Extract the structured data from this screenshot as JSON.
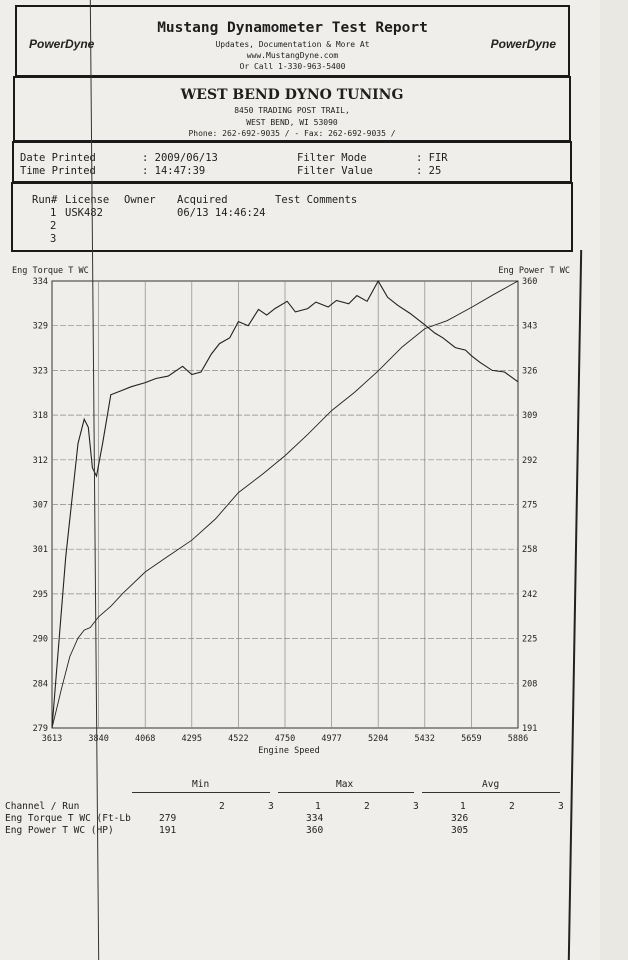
{
  "header": {
    "title": "Mustang Dynamometer Test Report",
    "line1": "Updates, Documentation & More At",
    "line2": "www.MustangDyne.com",
    "line3": "Or Call 1-330-963-5400",
    "logo_text": "PowerDyne"
  },
  "shop": {
    "name": "WEST BEND DYNO TUNING",
    "address1": "8450 TRADING POST TRAIL,",
    "address2": "WEST BEND, WI  53090",
    "phone": "Phone: 262-692-9035 /  - Fax: 262-692-9035 /"
  },
  "info": {
    "date_label": "Date Printed",
    "date_value": ": 2009/06/13",
    "time_label": "Time Printed",
    "time_value": ": 14:47:39",
    "filter_mode_label": "Filter Mode",
    "filter_mode_value": ": FIR",
    "filter_value_label": "Filter Value",
    "filter_value_value": ": 25"
  },
  "runs": {
    "headers": [
      "Run#",
      "License",
      "Owner",
      "Acquired",
      "Test Comments"
    ],
    "rows": [
      {
        "run": "1",
        "license": "USK482",
        "acquired": "06/13 14:46:24"
      },
      {
        "run": "2"
      },
      {
        "run": "3"
      }
    ]
  },
  "chart_data": {
    "type": "line",
    "left_axis_label": "Eng Torque T WC",
    "right_axis_label": "Eng Power T WC",
    "xlabel": "Engine Speed",
    "xlim": [
      3613,
      5886
    ],
    "ylim_left": [
      279,
      334
    ],
    "ylim_right": [
      191,
      360
    ],
    "x_ticks": [
      "3613",
      "3840",
      "4068",
      "4295",
      "4522",
      "4750",
      "4977",
      "5204",
      "5432",
      "5659",
      "5886"
    ],
    "left_ticks": [
      "334",
      "329",
      "323",
      "318",
      "312",
      "307",
      "301",
      "295",
      "290",
      "284",
      "279"
    ],
    "right_ticks": [
      "360",
      "343",
      "326",
      "309",
      "292",
      "275",
      "258",
      "242",
      "225",
      "208",
      "191"
    ],
    "grid": true,
    "series": [
      {
        "name": "Eng Torque T WC (Ft-Lb)",
        "axis": "left",
        "x": [
          3613,
          3680,
          3740,
          3770,
          3790,
          3810,
          3830,
          3860,
          3900,
          3950,
          4000,
          4068,
          4120,
          4180,
          4250,
          4295,
          4340,
          4390,
          4430,
          4480,
          4522,
          4570,
          4620,
          4660,
          4700,
          4760,
          4800,
          4860,
          4900,
          4960,
          5000,
          5060,
          5100,
          5150,
          5204,
          5250,
          5300,
          5360,
          5432,
          5480,
          5520,
          5580,
          5630,
          5659,
          5700,
          5760,
          5820,
          5886
        ],
        "y": [
          279,
          300,
          314,
          317,
          316,
          311,
          310,
          314,
          320,
          320.5,
          321,
          321.5,
          322,
          322.3,
          323.5,
          322.5,
          322.8,
          325,
          326.3,
          327,
          329,
          328.5,
          330.5,
          329.8,
          330.6,
          331.5,
          330.2,
          330.6,
          331.4,
          330.8,
          331.6,
          331.2,
          332.2,
          331.5,
          334,
          332,
          331,
          330,
          328.6,
          327.6,
          327,
          325.8,
          325.5,
          324.8,
          324,
          323,
          322.8,
          321.6
        ]
      },
      {
        "name": "Eng Power T WC (HP)",
        "axis": "right",
        "x": [
          3613,
          3660,
          3700,
          3740,
          3770,
          3800,
          3840,
          3900,
          3960,
          4068,
          4180,
          4295,
          4410,
          4522,
          4640,
          4750,
          4860,
          4977,
          5090,
          5204,
          5320,
          5432,
          5540,
          5659,
          5770,
          5886
        ],
        "y": [
          191,
          206,
          218,
          225,
          228,
          229,
          233,
          237,
          242,
          250,
          256,
          262,
          270,
          280,
          287,
          294,
          302,
          311,
          318,
          326,
          335,
          342,
          345,
          350,
          355,
          360
        ]
      }
    ]
  },
  "stats": {
    "groups": [
      "Min",
      "Max",
      "Avg"
    ],
    "channel_header": "Channel / Run",
    "min_runs": [
      "",
      "2",
      "3"
    ],
    "max_runs": [
      "1",
      "2",
      "3"
    ],
    "avg_runs": [
      "1",
      "2",
      "3"
    ],
    "rows": [
      {
        "channel": "Eng Torque T WC (Ft-Lb",
        "min": "279",
        "max": "334",
        "avg": "326"
      },
      {
        "channel": "Eng Power T WC (HP)",
        "min": "191",
        "max": "360",
        "avg": "305"
      }
    ]
  }
}
